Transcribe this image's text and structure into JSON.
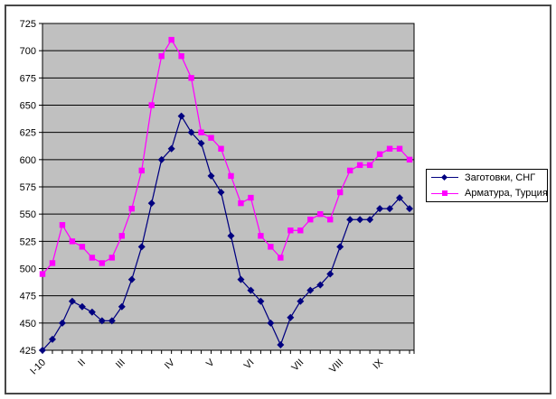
{
  "chart_data": {
    "type": "line",
    "title": "",
    "grid": "horizontal",
    "plot_background": "#C0C0C0",
    "gridline_color": "#000000",
    "legend_position": "right",
    "y_axis": {
      "min": 425,
      "max": 725,
      "step": 25,
      "ticks": [
        425,
        450,
        475,
        500,
        525,
        550,
        575,
        600,
        625,
        650,
        675,
        700,
        725
      ]
    },
    "x_axis": {
      "tick_labels": [
        {
          "index": 0,
          "label": "I-10"
        },
        {
          "index": 4,
          "label": "II"
        },
        {
          "index": 8,
          "label": "III"
        },
        {
          "index": 13,
          "label": "IV"
        },
        {
          "index": 17,
          "label": "V"
        },
        {
          "index": 21,
          "label": "VI"
        },
        {
          "index": 26,
          "label": "VII"
        },
        {
          "index": 30,
          "label": "VIII"
        },
        {
          "index": 34,
          "label": "IX"
        }
      ]
    },
    "series": [
      {
        "name": "Заготовки, СНГ",
        "color": "#000080",
        "marker": "diamond",
        "values": [
          425,
          435,
          450,
          470,
          465,
          460,
          452,
          452,
          465,
          490,
          520,
          560,
          600,
          610,
          640,
          625,
          615,
          585,
          570,
          530,
          490,
          480,
          470,
          450,
          430,
          455,
          470,
          480,
          485,
          495,
          520,
          545,
          545,
          545,
          555,
          555,
          565,
          555
        ]
      },
      {
        "name": "Арматура, Турция",
        "color": "#FF00FF",
        "marker": "square",
        "values": [
          495,
          505,
          540,
          525,
          520,
          510,
          505,
          510,
          530,
          555,
          590,
          650,
          695,
          710,
          695,
          675,
          625,
          620,
          610,
          585,
          560,
          565,
          530,
          520,
          510,
          535,
          535,
          545,
          550,
          545,
          570,
          590,
          595,
          595,
          605,
          610,
          610,
          600
        ]
      }
    ]
  }
}
